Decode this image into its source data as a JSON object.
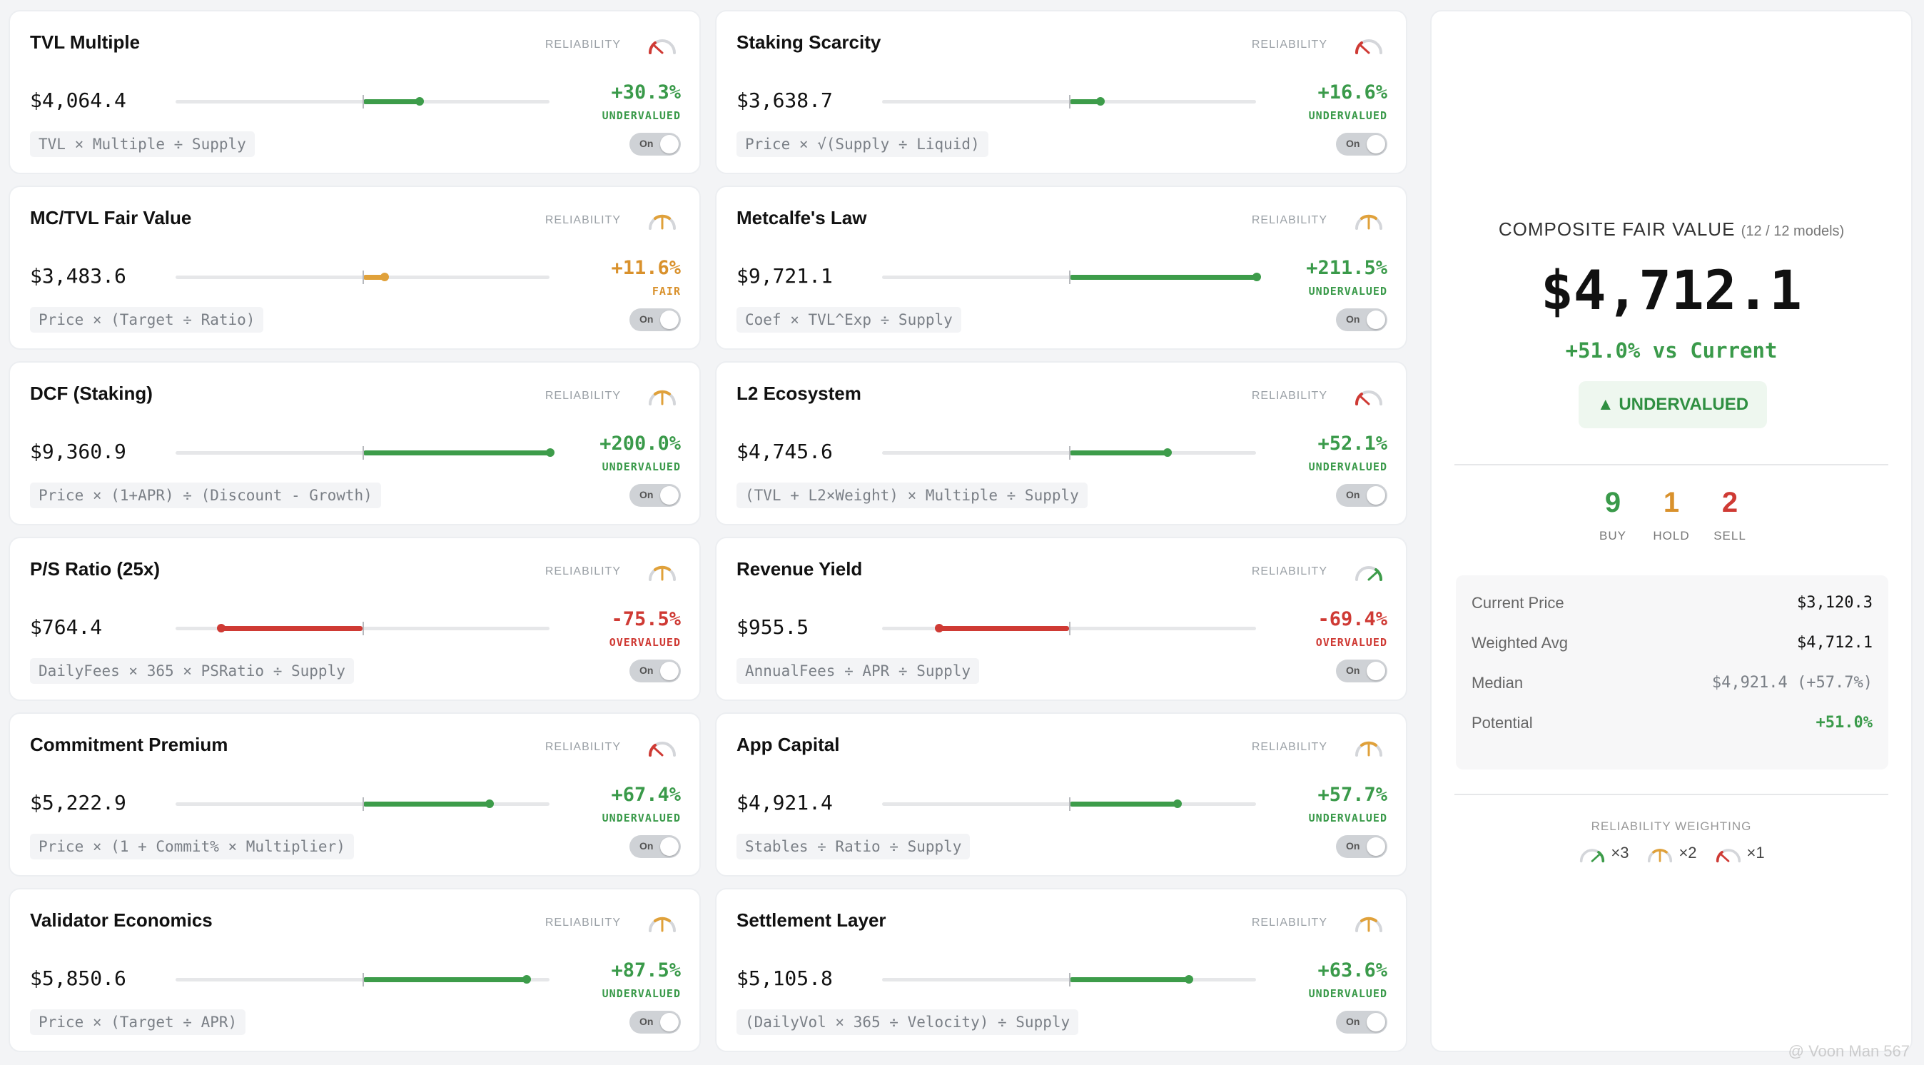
{
  "reliability_label": "RELIABILITY",
  "toggle_label": "On",
  "colors": {
    "green": "#3d9c4a",
    "orange": "#e0a13a",
    "red": "#cf3a34"
  },
  "cards": [
    {
      "title": "TVL Multiple",
      "value": "$4,064.4",
      "pct": "+30.3%",
      "verdict": "UNDERVALUED",
      "formula": "TVL × Multiple ÷ Supply",
      "deviation_pct": 30.3,
      "reliability": "low",
      "status": "green"
    },
    {
      "title": "Staking Scarcity",
      "value": "$3,638.7",
      "pct": "+16.6%",
      "verdict": "UNDERVALUED",
      "formula": "Price × √(Supply ÷ Liquid)",
      "deviation_pct": 16.6,
      "reliability": "low",
      "status": "green"
    },
    {
      "title": "MC/TVL Fair Value",
      "value": "$3,483.6",
      "pct": "+11.6%",
      "verdict": "FAIR",
      "formula": "Price × (Target ÷ Ratio)",
      "deviation_pct": 11.6,
      "reliability": "medium",
      "status": "orange"
    },
    {
      "title": "Metcalfe's Law",
      "value": "$9,721.1",
      "pct": "+211.5%",
      "verdict": "UNDERVALUED",
      "formula": "Coef × TVL^Exp ÷ Supply",
      "deviation_pct": 211.5,
      "reliability": "medium",
      "status": "green"
    },
    {
      "title": "DCF (Staking)",
      "value": "$9,360.9",
      "pct": "+200.0%",
      "verdict": "UNDERVALUED",
      "formula": "Price × (1+APR) ÷ (Discount - Growth)",
      "deviation_pct": 200.0,
      "reliability": "medium",
      "status": "green"
    },
    {
      "title": "L2 Ecosystem",
      "value": "$4,745.6",
      "pct": "+52.1%",
      "verdict": "UNDERVALUED",
      "formula": "(TVL + L2×Weight) × Multiple ÷ Supply",
      "deviation_pct": 52.1,
      "reliability": "low",
      "status": "green"
    },
    {
      "title": "P/S Ratio (25x)",
      "value": "$764.4",
      "pct": "-75.5%",
      "verdict": "OVERVALUED",
      "formula": "DailyFees × 365 × PSRatio ÷ Supply",
      "deviation_pct": -75.5,
      "reliability": "medium",
      "status": "red"
    },
    {
      "title": "Revenue Yield",
      "value": "$955.5",
      "pct": "-69.4%",
      "verdict": "OVERVALUED",
      "formula": "AnnualFees ÷ APR ÷ Supply",
      "deviation_pct": -69.4,
      "reliability": "high",
      "status": "red"
    },
    {
      "title": "Commitment Premium",
      "value": "$5,222.9",
      "pct": "+67.4%",
      "verdict": "UNDERVALUED",
      "formula": "Price × (1 + Commit% × Multiplier)",
      "deviation_pct": 67.4,
      "reliability": "low",
      "status": "green"
    },
    {
      "title": "App Capital",
      "value": "$4,921.4",
      "pct": "+57.7%",
      "verdict": "UNDERVALUED",
      "formula": "Stables ÷ Ratio ÷ Supply",
      "deviation_pct": 57.7,
      "reliability": "medium",
      "status": "green"
    },
    {
      "title": "Validator Economics",
      "value": "$5,850.6",
      "pct": "+87.5%",
      "verdict": "UNDERVALUED",
      "formula": "Price × (Target ÷ APR)",
      "deviation_pct": 87.5,
      "reliability": "medium",
      "status": "green"
    },
    {
      "title": "Settlement Layer",
      "value": "$5,105.8",
      "pct": "+63.6%",
      "verdict": "UNDERVALUED",
      "formula": "(DailyVol × 365 ÷ Velocity) ÷ Supply",
      "deviation_pct": 63.6,
      "reliability": "medium",
      "status": "green"
    }
  ],
  "summary": {
    "title": "COMPOSITE FAIR VALUE",
    "models": "(12 / 12 models)",
    "fair_value": "$4,712.1",
    "vs_current": "+51.0% vs Current",
    "badge": "▲ UNDERVALUED",
    "counts": [
      {
        "num": "9",
        "label": "BUY",
        "color": "#3a9a4a"
      },
      {
        "num": "1",
        "label": "HOLD",
        "color": "#d9912c"
      },
      {
        "num": "2",
        "label": "SELL",
        "color": "#cf3a34"
      }
    ],
    "stats": [
      {
        "label": "Current Price",
        "value": "$3,120.3",
        "style": ""
      },
      {
        "label": "Weighted Avg",
        "value": "$4,712.1",
        "style": ""
      },
      {
        "label": "Median",
        "value": "$4,921.4 (+57.7%)",
        "style": "gray"
      },
      {
        "label": "Potential",
        "value": "+51.0%",
        "style": "green"
      }
    ],
    "weighting_title": "RELIABILITY WEIGHTING",
    "weights": [
      {
        "reliability": "high",
        "label": "×3"
      },
      {
        "reliability": "medium",
        "label": "×2"
      },
      {
        "reliability": "low",
        "label": "×1"
      }
    ]
  },
  "watermark": "@ Voon Man 567"
}
